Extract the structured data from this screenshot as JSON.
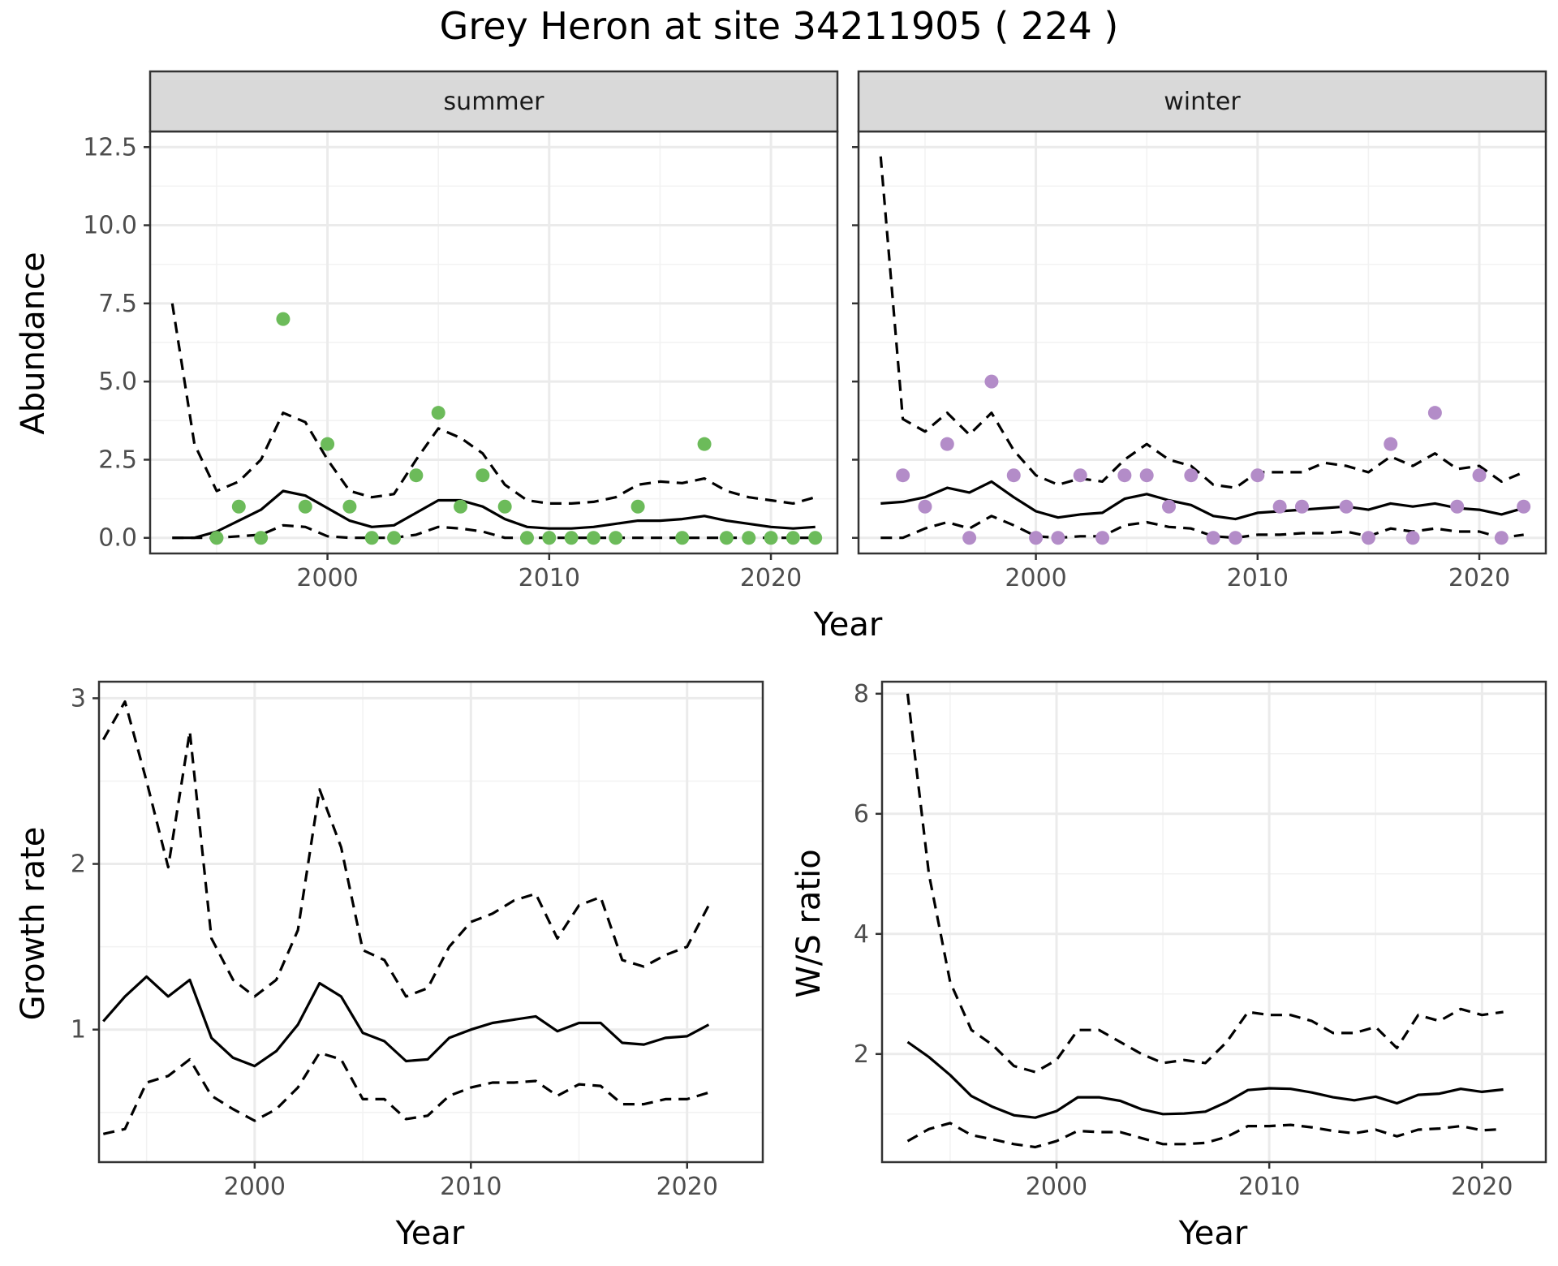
{
  "title": "Grey Heron at site 34211905 ( 224 )",
  "colors": {
    "summer": "#6cbb5a",
    "winter": "#b38cc8",
    "line": "#000000",
    "grid_major": "#ebebeb",
    "grid_minor": "#f2f2f2",
    "strip_bg": "#d9d9d9"
  },
  "chart_data": [
    {
      "type": "line",
      "facet": "summer",
      "xlabel": "Year",
      "ylabel": "Abundance",
      "xlim": [
        1992,
        2023
      ],
      "ylim": [
        -0.5,
        13
      ],
      "xticks": [
        2000,
        2010,
        2020
      ],
      "xtick_labels": [
        "2000",
        "2010",
        "2020"
      ],
      "yticks": [
        0,
        2.5,
        5,
        7.5,
        10,
        12.5
      ],
      "ytick_labels": [
        "0.0",
        "2.5",
        "5.0",
        "7.5",
        "10.0",
        "12.5"
      ],
      "x": [
        1993,
        1994,
        1995,
        1996,
        1997,
        1998,
        1999,
        2000,
        2001,
        2002,
        2003,
        2004,
        2005,
        2006,
        2007,
        2008,
        2009,
        2010,
        2011,
        2012,
        2013,
        2014,
        2015,
        2016,
        2017,
        2018,
        2019,
        2020,
        2021,
        2022
      ],
      "series": [
        {
          "values": [
            0,
            0,
            0.2,
            0.55,
            0.9,
            1.5,
            1.35,
            0.95,
            0.55,
            0.35,
            0.4,
            0.8,
            1.2,
            1.2,
            1.0,
            0.6,
            0.35,
            0.3,
            0.3,
            0.35,
            0.45,
            0.55,
            0.55,
            0.6,
            0.7,
            0.55,
            0.45,
            0.35,
            0.3,
            0.35
          ],
          "style": "solid"
        },
        {
          "values": [
            7.5,
            3.0,
            1.5,
            1.8,
            2.5,
            4.0,
            3.7,
            2.5,
            1.5,
            1.3,
            1.4,
            2.5,
            3.5,
            3.2,
            2.7,
            1.7,
            1.2,
            1.1,
            1.1,
            1.15,
            1.3,
            1.7,
            1.8,
            1.75,
            1.9,
            1.5,
            1.3,
            1.2,
            1.1,
            1.3
          ],
          "style": "dashed"
        },
        {
          "values": [
            0,
            0,
            0,
            0.05,
            0.1,
            0.4,
            0.35,
            0.05,
            0,
            0,
            0,
            0.1,
            0.35,
            0.3,
            0.2,
            0,
            0,
            0,
            0,
            0,
            0,
            0,
            0,
            0,
            0,
            0,
            0,
            0,
            0,
            0
          ],
          "style": "dashed"
        }
      ],
      "points": {
        "x": [
          1995,
          1996,
          1997,
          1998,
          1999,
          2000,
          2001,
          2002,
          2003,
          2004,
          2005,
          2006,
          2007,
          2008,
          2009,
          2010,
          2011,
          2012,
          2013,
          2014,
          2016,
          2017,
          2018,
          2019,
          2020,
          2021,
          2022
        ],
        "y": [
          0,
          1,
          0,
          7,
          1,
          3,
          1,
          0,
          0,
          2,
          4,
          1,
          2,
          1,
          0,
          0,
          0,
          0,
          0,
          1,
          0,
          3,
          0,
          0,
          0,
          0,
          0
        ]
      }
    },
    {
      "type": "line",
      "facet": "winter",
      "xlabel": "Year",
      "ylabel": "Abundance",
      "xlim": [
        1992,
        2023
      ],
      "ylim": [
        -0.5,
        13
      ],
      "xticks": [
        2000,
        2010,
        2020
      ],
      "xtick_labels": [
        "2000",
        "2010",
        "2020"
      ],
      "yticks": [
        0,
        2.5,
        5,
        7.5,
        10,
        12.5
      ],
      "x": [
        1993,
        1994,
        1995,
        1996,
        1997,
        1998,
        1999,
        2000,
        2001,
        2002,
        2003,
        2004,
        2005,
        2006,
        2007,
        2008,
        2009,
        2010,
        2011,
        2012,
        2013,
        2014,
        2015,
        2016,
        2017,
        2018,
        2019,
        2020,
        2021,
        2022
      ],
      "series": [
        {
          "values": [
            1.1,
            1.15,
            1.3,
            1.6,
            1.45,
            1.8,
            1.3,
            0.85,
            0.65,
            0.75,
            0.8,
            1.25,
            1.4,
            1.2,
            1.05,
            0.7,
            0.6,
            0.8,
            0.85,
            0.9,
            0.95,
            1.0,
            0.9,
            1.1,
            1.0,
            1.1,
            0.95,
            0.9,
            0.75,
            0.95
          ],
          "style": "solid"
        },
        {
          "values": [
            12.2,
            3.8,
            3.4,
            4.0,
            3.3,
            4.0,
            2.8,
            2.0,
            1.7,
            1.9,
            1.8,
            2.5,
            3.0,
            2.5,
            2.3,
            1.7,
            1.6,
            2.1,
            2.1,
            2.1,
            2.4,
            2.3,
            2.1,
            2.6,
            2.3,
            2.7,
            2.2,
            2.3,
            1.8,
            2.1
          ],
          "style": "dashed"
        },
        {
          "values": [
            0,
            0,
            0.3,
            0.5,
            0.3,
            0.7,
            0.4,
            0.05,
            0,
            0.05,
            0.05,
            0.4,
            0.5,
            0.35,
            0.3,
            0.05,
            0,
            0.1,
            0.1,
            0.15,
            0.15,
            0.2,
            0.05,
            0.3,
            0.2,
            0.3,
            0.2,
            0.2,
            0,
            0.1
          ],
          "style": "dashed"
        }
      ],
      "points": {
        "x": [
          1994,
          1995,
          1996,
          1997,
          1998,
          1999,
          2000,
          2001,
          2002,
          2003,
          2004,
          2005,
          2006,
          2007,
          2008,
          2009,
          2010,
          2011,
          2012,
          2014,
          2015,
          2016,
          2017,
          2018,
          2019,
          2020,
          2021,
          2022
        ],
        "y": [
          2,
          1,
          3,
          0,
          5,
          2,
          0,
          0,
          2,
          0,
          2,
          2,
          1,
          2,
          0,
          0,
          2,
          1,
          1,
          1,
          0,
          3,
          0,
          4,
          1,
          2,
          0,
          1
        ]
      }
    },
    {
      "type": "line",
      "xlabel": "Year",
      "ylabel": "Growth rate",
      "xlim": [
        1992.8,
        2023.5
      ],
      "ylim": [
        0.2,
        3.1
      ],
      "xticks": [
        2000,
        2010,
        2020
      ],
      "xtick_labels": [
        "2000",
        "2010",
        "2020"
      ],
      "yticks": [
        1,
        2,
        3
      ],
      "ytick_labels": [
        "1",
        "2",
        "3"
      ],
      "x": [
        1993,
        1994,
        1995,
        1996,
        1997,
        1998,
        1999,
        2000,
        2001,
        2002,
        2003,
        2004,
        2005,
        2006,
        2007,
        2008,
        2009,
        2010,
        2011,
        2012,
        2013,
        2014,
        2015,
        2016,
        2017,
        2018,
        2019,
        2020,
        2021
      ],
      "series": [
        {
          "values": [
            1.05,
            1.2,
            1.32,
            1.2,
            1.3,
            0.95,
            0.83,
            0.78,
            0.87,
            1.03,
            1.28,
            1.2,
            0.98,
            0.93,
            0.81,
            0.82,
            0.95,
            1.0,
            1.04,
            1.06,
            1.08,
            0.99,
            1.04,
            1.04,
            0.92,
            0.91,
            0.95,
            0.96,
            1.03
          ],
          "style": "solid"
        },
        {
          "values": [
            2.75,
            2.98,
            2.5,
            1.98,
            2.8,
            1.55,
            1.3,
            1.2,
            1.3,
            1.6,
            2.45,
            2.1,
            1.48,
            1.42,
            1.2,
            1.25,
            1.5,
            1.65,
            1.7,
            1.78,
            1.82,
            1.55,
            1.75,
            1.8,
            1.42,
            1.38,
            1.45,
            1.5,
            1.75
          ],
          "style": "dashed"
        },
        {
          "values": [
            0.37,
            0.4,
            0.68,
            0.72,
            0.82,
            0.6,
            0.52,
            0.45,
            0.52,
            0.65,
            0.86,
            0.82,
            0.58,
            0.58,
            0.46,
            0.48,
            0.6,
            0.65,
            0.68,
            0.68,
            0.69,
            0.6,
            0.67,
            0.66,
            0.55,
            0.55,
            0.58,
            0.58,
            0.62
          ],
          "style": "dashed"
        }
      ]
    },
    {
      "type": "line",
      "xlabel": "Year",
      "ylabel": "W/S ratio",
      "xlim": [
        1991.8,
        2023
      ],
      "ylim": [
        0.2,
        8.2
      ],
      "xticks": [
        2000,
        2010,
        2020
      ],
      "xtick_labels": [
        "2000",
        "2010",
        "2020"
      ],
      "yticks": [
        2,
        4,
        6,
        8
      ],
      "ytick_labels": [
        "2",
        "4",
        "6",
        "8"
      ],
      "x": [
        1993,
        1994,
        1995,
        1996,
        1997,
        1998,
        1999,
        2000,
        2001,
        2002,
        2003,
        2004,
        2005,
        2006,
        2007,
        2008,
        2009,
        2010,
        2011,
        2012,
        2013,
        2014,
        2015,
        2016,
        2017,
        2018,
        2019,
        2020,
        2021
      ],
      "series": [
        {
          "values": [
            2.2,
            1.95,
            1.65,
            1.3,
            1.12,
            0.98,
            0.94,
            1.05,
            1.28,
            1.28,
            1.22,
            1.08,
            1.0,
            1.01,
            1.04,
            1.2,
            1.4,
            1.43,
            1.42,
            1.36,
            1.28,
            1.23,
            1.29,
            1.18,
            1.32,
            1.34,
            1.42,
            1.37,
            1.41
          ],
          "style": "solid"
        },
        {
          "values": [
            8.0,
            5.0,
            3.2,
            2.4,
            2.15,
            1.8,
            1.7,
            1.9,
            2.4,
            2.4,
            2.2,
            2.0,
            1.85,
            1.9,
            1.85,
            2.2,
            2.7,
            2.65,
            2.65,
            2.55,
            2.35,
            2.35,
            2.45,
            2.1,
            2.65,
            2.55,
            2.75,
            2.65,
            2.7
          ],
          "style": "dashed"
        },
        {
          "values": [
            0.55,
            0.75,
            0.85,
            0.65,
            0.58,
            0.5,
            0.45,
            0.55,
            0.72,
            0.7,
            0.7,
            0.6,
            0.5,
            0.5,
            0.52,
            0.62,
            0.8,
            0.8,
            0.82,
            0.78,
            0.72,
            0.68,
            0.74,
            0.63,
            0.74,
            0.76,
            0.8,
            0.73,
            0.75
          ],
          "style": "dashed"
        }
      ]
    }
  ]
}
